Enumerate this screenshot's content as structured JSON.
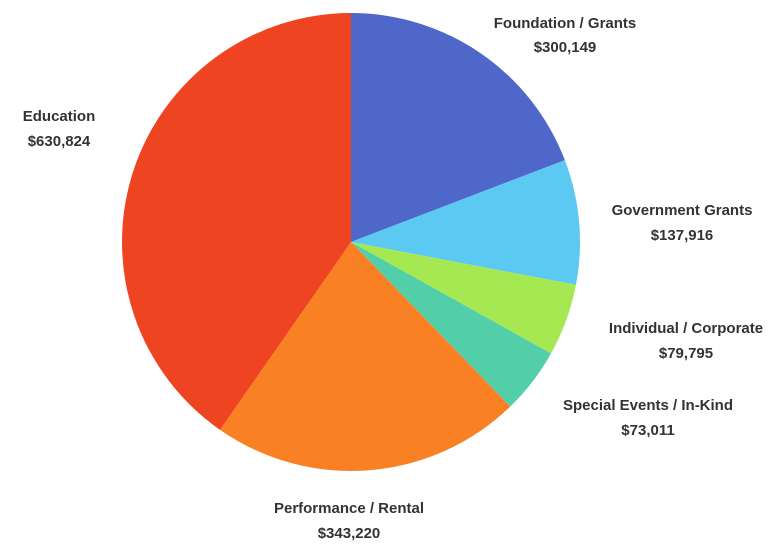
{
  "chart_data": {
    "type": "pie",
    "title": "",
    "start_angle_deg": 0,
    "direction": "clockwise",
    "slices": [
      {
        "label": "Foundation  / Grants",
        "value": 300149,
        "value_label": "$300,149",
        "color": "#4f67c8"
      },
      {
        "label": "Government Grants",
        "value": 137916,
        "value_label": "$137,916",
        "color": "#5bc9f1"
      },
      {
        "label": "Individual  / Corporate",
        "value": 79795,
        "value_label": "$79,795",
        "color": "#a5e852"
      },
      {
        "label": "Special Events / In-Kind",
        "value": 73011,
        "value_label": "$73,011",
        "color": "#52cfa8"
      },
      {
        "label": "Performance / Rental",
        "value": 343220,
        "value_label": "$343,220",
        "color": "#f98124"
      },
      {
        "label": "Education",
        "value": 630824,
        "value_label": "$630,824",
        "color": "#ef4422"
      }
    ]
  }
}
